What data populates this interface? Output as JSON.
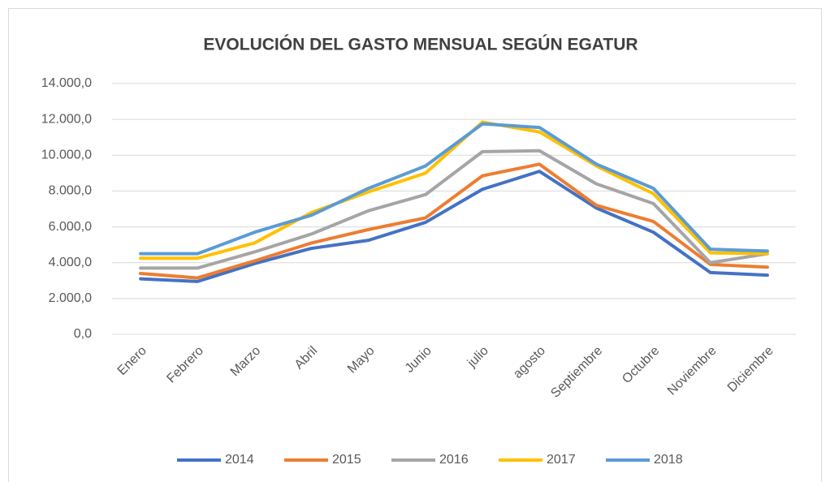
{
  "chart_data": {
    "type": "line",
    "title": "EVOLUCIÓN DEL GASTO MENSUAL SEGÚN  EGATUR",
    "categories": [
      "Enero",
      "Febrero",
      "Marzo",
      "Abril",
      "Mayo",
      "Junio",
      "julio",
      "agosto",
      "Septiembre",
      "Octubre",
      "Noviembre",
      "Diciembre"
    ],
    "series": [
      {
        "name": "2014",
        "color": "#4472c4",
        "values": [
          3100,
          2950,
          3950,
          4800,
          5250,
          6250,
          8100,
          9100,
          7050,
          5700,
          3450,
          3300
        ]
      },
      {
        "name": "2015",
        "color": "#ed7d31",
        "values": [
          3400,
          3150,
          4100,
          5100,
          5850,
          6500,
          8850,
          9500,
          7200,
          6300,
          3900,
          3750
        ]
      },
      {
        "name": "2016",
        "color": "#a5a5a5",
        "values": [
          3700,
          3700,
          4600,
          5600,
          6900,
          7800,
          10200,
          10250,
          8400,
          7300,
          4000,
          4500
        ]
      },
      {
        "name": "2017",
        "color": "#ffc000",
        "values": [
          4250,
          4250,
          5100,
          6800,
          7950,
          9000,
          11850,
          11300,
          9400,
          7850,
          4550,
          4500
        ]
      },
      {
        "name": "2018",
        "color": "#5b9bd5",
        "values": [
          4500,
          4500,
          5700,
          6650,
          8150,
          9400,
          11750,
          11550,
          9500,
          8150,
          4750,
          4650
        ]
      }
    ],
    "ylim": [
      0,
      14000
    ],
    "yticks": [
      {
        "value": 0,
        "label": "0,0"
      },
      {
        "value": 2000,
        "label": "2.000,0"
      },
      {
        "value": 4000,
        "label": "4.000,0"
      },
      {
        "value": 6000,
        "label": "6.000,0"
      },
      {
        "value": 8000,
        "label": "8.000,0"
      },
      {
        "value": 10000,
        "label": "10.000,0"
      },
      {
        "value": 12000,
        "label": "12.000,0"
      },
      {
        "value": 14000,
        "label": "14.000,0"
      }
    ],
    "grid": true,
    "legend": "bottom"
  }
}
